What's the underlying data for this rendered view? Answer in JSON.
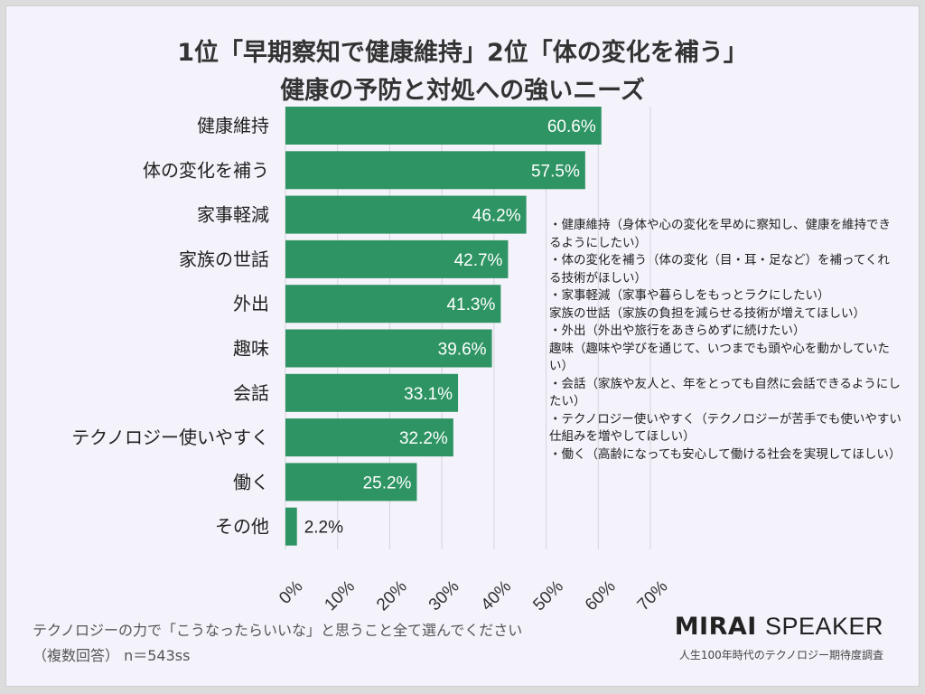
{
  "chart_data": {
    "type": "bar",
    "orientation": "horizontal",
    "title": "1位「早期察知で健康維持」2位「体の変化を補う」",
    "subtitle": "健康の予防と対処への強いニーズ",
    "categories": [
      "健康維持",
      "体の変化を補う",
      "家事軽減",
      "家族の世話",
      "外出",
      "趣味",
      "会話",
      "テクノロジー使いやすく",
      "働く",
      "その他"
    ],
    "values": [
      60.6,
      57.5,
      46.2,
      42.7,
      41.3,
      39.6,
      33.1,
      32.2,
      25.2,
      2.2
    ],
    "data_labels": [
      "60.6%",
      "57.5%",
      "46.2%",
      "42.7%",
      "41.3%",
      "39.6%",
      "33.1%",
      "32.2%",
      "25.2%",
      "2.2%"
    ],
    "xlim": [
      0,
      70
    ],
    "x_ticks": [
      "0%",
      "10%",
      "20%",
      "30%",
      "40%",
      "50%",
      "60%",
      "70%"
    ],
    "grid": true,
    "bar_color": "#2e9463"
  },
  "notes": "・健康維持（身体や心の変化を早めに察知し、健康を維持できるようにしたい）\n・体の変化を補う（体の変化（目・耳・足など）を補ってくれる技術がほしい）\n・家事軽減（家事や暮らしをもっとラクにしたい）\n家族の世話（家族の負担を減らせる技術が増えてほしい）\n・外出（外出や旅行をあきらめずに続けたい）\n趣味（趣味や学びを通じて、いつまでも頭や心を動かしていたい）\n・会話（家族や友人と、年をとっても自然に会話できるようにしたい）\n・テクノロジー使いやすく（テクノロジーが苦手でも使いやすい仕組みを増やしてほしい）\n・働く（高齢になっても安心して働ける社会を実現してほしい）",
  "footer": {
    "question": "テクノロジーの力で「こうなったらいいな」と思うこと全て選んでください",
    "sample": "（複数回答） n＝543ss",
    "brand_bold": "MIRAI",
    "brand_light": "SPEAKER",
    "survey": "人生100年時代のテクノロジー期待度調査"
  }
}
